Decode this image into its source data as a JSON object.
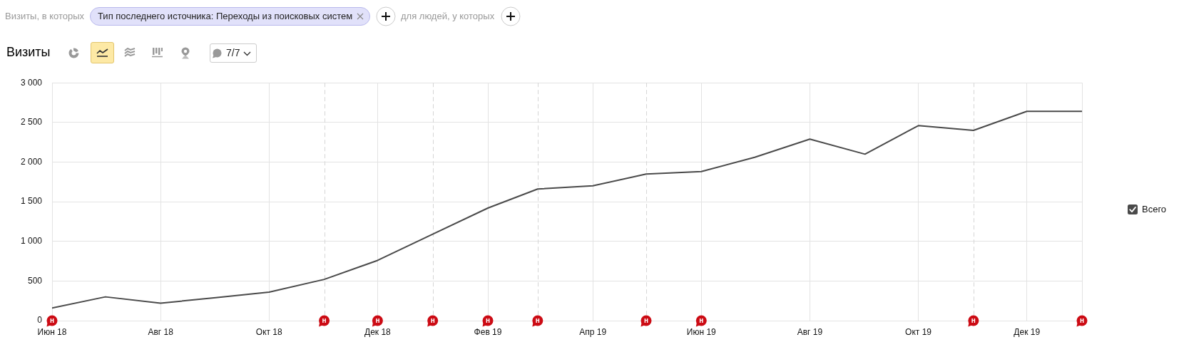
{
  "chart_data": {
    "type": "line",
    "title": "Визиты",
    "annotations": [
      "Визиты, в которых",
      "Тип последнего источника: Переходы из поисковых систем",
      "для людей, у которых",
      "7/7",
      {
        "text": "н",
        "x": "2018-06"
      },
      {
        "text": "н",
        "x": "2018-11"
      },
      {
        "text": "н",
        "x": "2018-12"
      },
      {
        "text": "н",
        "x": "2019-01"
      },
      {
        "text": "н",
        "x": "2019-02"
      },
      {
        "text": "н",
        "x": "2019-03"
      },
      {
        "text": "н",
        "x": "2019-05"
      },
      {
        "text": "н",
        "x": "2019-06"
      },
      {
        "text": "н",
        "x": "2019-11"
      },
      {
        "text": "н",
        "x": "2020-01"
      }
    ],
    "x": [
      "2018-06",
      "2018-07",
      "2018-08",
      "2018-09",
      "2018-10",
      "2018-11",
      "2018-12",
      "2019-01",
      "2019-02",
      "2019-03",
      "2019-04",
      "2019-05",
      "2019-06",
      "2019-07",
      "2019-08",
      "2019-09",
      "2019-10",
      "2019-11",
      "2019-12",
      "2020-01"
    ],
    "series": [
      {
        "name": "Всего",
        "color": "#4a4a4a",
        "values": [
          160,
          300,
          220,
          290,
          360,
          520,
          760,
          1090,
          1420,
          1660,
          1700,
          1850,
          1880,
          2060,
          2290,
          2100,
          2460,
          2400,
          2640,
          2640
        ]
      }
    ],
    "xlim": [
      "2018-06",
      "2020-01"
    ],
    "xticks": [
      {
        "value": "2018-06",
        "label": "Июн 18"
      },
      {
        "value": "2018-08",
        "label": "Авг 18"
      },
      {
        "value": "2018-10",
        "label": "Окт 18"
      },
      {
        "value": "2018-12",
        "label": "Дек 18"
      },
      {
        "value": "2019-02",
        "label": "Фев 19"
      },
      {
        "value": "2019-04",
        "label": "Апр 19"
      },
      {
        "value": "2019-06",
        "label": "Июн 19"
      },
      {
        "value": "2019-08",
        "label": "Авг 19"
      },
      {
        "value": "2019-10",
        "label": "Окт 19"
      },
      {
        "value": "2019-12",
        "label": "Дек 19"
      }
    ],
    "ylim": [
      0,
      3000
    ],
    "yticks": [
      0,
      500,
      {
        "value": 1000,
        "label": "1 000"
      },
      {
        "value": 1500,
        "label": "1 500"
      },
      {
        "value": 2000,
        "label": "2 000"
      },
      {
        "value": 2500,
        "label": "2 500"
      },
      {
        "value": 3000,
        "label": "3 000"
      }
    ],
    "grid": true,
    "legend": "right",
    "ref_lines": [
      {
        "axis": "x",
        "value": "2018-11",
        "color": "#d6d6d6",
        "line_style": "dashed"
      },
      {
        "axis": "x",
        "value": "2019-01",
        "color": "#d6d6d6",
        "line_style": "dashed"
      },
      {
        "axis": "x",
        "value": "2019-03",
        "color": "#d6d6d6",
        "line_style": "dashed"
      },
      {
        "axis": "x",
        "value": "2019-05",
        "color": "#d6d6d6",
        "line_style": "dashed"
      },
      {
        "axis": "x",
        "value": "2019-11",
        "color": "#d6d6d6",
        "line_style": "dashed"
      }
    ]
  }
}
